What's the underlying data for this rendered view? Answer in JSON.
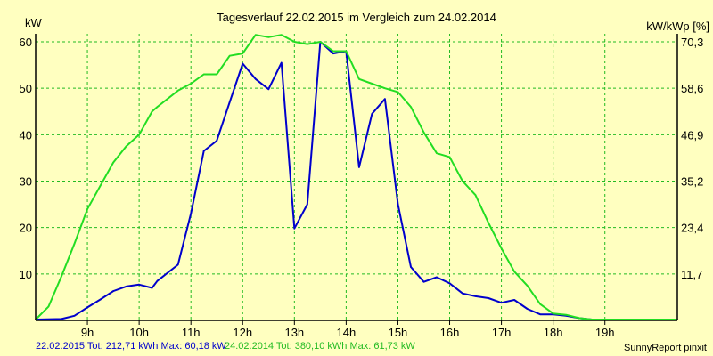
{
  "chart_data": {
    "type": "line",
    "title": "Tagesverlauf 22.02.2015 im Vergleich zum 24.02.2014",
    "ylabel_left": "kW",
    "ylabel_right": "kW/kWp [%]",
    "xlim": [
      8.0,
      20.4
    ],
    "ylim": [
      0,
      61.73
    ],
    "x_ticks": [
      9,
      10,
      11,
      12,
      13,
      14,
      15,
      16,
      17,
      18,
      19
    ],
    "x_tick_labels": [
      "9h",
      "10h",
      "11h",
      "12h",
      "13h",
      "14h",
      "15h",
      "16h",
      "17h",
      "18h",
      "19h"
    ],
    "y_ticks_left": [
      10,
      20,
      30,
      40,
      50,
      60
    ],
    "y_tick_labels_left": [
      "10",
      "20",
      "30",
      "40",
      "50",
      "60"
    ],
    "y_ticks_right": [
      10,
      20,
      30,
      40,
      50,
      60
    ],
    "y_tick_labels_right": [
      "11,7",
      "23,4",
      "35,2",
      "46,9",
      "58,6",
      "70,3"
    ],
    "grid": true,
    "series": [
      {
        "name": "22.02.2015",
        "color": "#0000cc",
        "x": [
          8.0,
          8.5,
          8.75,
          9.0,
          9.25,
          9.5,
          9.75,
          10.0,
          10.25,
          10.35,
          10.75,
          11.0,
          11.25,
          11.5,
          11.75,
          12.0,
          12.25,
          12.5,
          12.75,
          13.0,
          13.25,
          13.5,
          13.75,
          14.0,
          14.25,
          14.5,
          14.75,
          15.0,
          15.25,
          15.5,
          15.75,
          16.0,
          16.25,
          16.5,
          16.75,
          17.0,
          17.25,
          17.5,
          17.75,
          18.0,
          18.25,
          18.5,
          18.75,
          19.0,
          19.25,
          19.5,
          20.4
        ],
        "values": [
          0.2,
          0.3,
          1.0,
          2.8,
          4.5,
          6.3,
          7.3,
          7.7,
          7.0,
          8.5,
          12.0,
          23.0,
          36.5,
          38.7,
          47.0,
          55.3,
          52.0,
          49.8,
          55.5,
          19.8,
          25.0,
          60.0,
          57.5,
          58.0,
          33.0,
          44.5,
          47.7,
          25.0,
          11.5,
          8.3,
          9.3,
          8.0,
          5.8,
          5.2,
          4.8,
          3.8,
          4.4,
          2.5,
          1.3,
          1.3,
          1.0,
          0.5,
          0.2,
          0.2,
          0.2,
          0.2,
          0.2
        ]
      },
      {
        "name": "24.02.2014",
        "color": "#22dd22",
        "x": [
          8.0,
          8.25,
          8.5,
          8.75,
          9.0,
          9.25,
          9.5,
          9.75,
          10.0,
          10.25,
          10.35,
          10.75,
          11.0,
          11.25,
          11.5,
          11.75,
          12.0,
          12.25,
          12.5,
          12.75,
          13.0,
          13.25,
          13.5,
          13.75,
          14.0,
          14.25,
          14.5,
          14.75,
          15.0,
          15.25,
          15.5,
          15.75,
          16.0,
          16.25,
          16.5,
          16.75,
          17.0,
          17.25,
          17.5,
          17.75,
          18.0,
          18.25,
          18.5,
          18.75,
          19.0,
          19.25,
          20.4
        ],
        "values": [
          0.2,
          3.0,
          9.5,
          16.5,
          24.0,
          29.0,
          34.0,
          37.5,
          40.0,
          45.0,
          46.0,
          49.5,
          51.0,
          53.0,
          53.0,
          57.0,
          57.5,
          61.5,
          61.0,
          61.5,
          60.0,
          59.5,
          60.0,
          58.0,
          58.0,
          52.0,
          51.0,
          50.0,
          49.2,
          46.0,
          40.5,
          36.0,
          35.2,
          30.0,
          27.0,
          21.0,
          15.5,
          10.5,
          7.5,
          3.5,
          1.5,
          1.2,
          0.5,
          0.2,
          0.2,
          0.2,
          0.2
        ]
      }
    ]
  },
  "footer": {
    "series1_stats": "22.02.2015 Tot: 212,71 kWh Max: 60,18 kW",
    "series2_stats": "24.02.2014 Tot: 380,10 kWh Max: 61,73 kW",
    "brand": "SunnyReport pinxit"
  },
  "colors": {
    "background": "#ffffc0",
    "grid": "#22bb22",
    "axis": "#000000"
  }
}
